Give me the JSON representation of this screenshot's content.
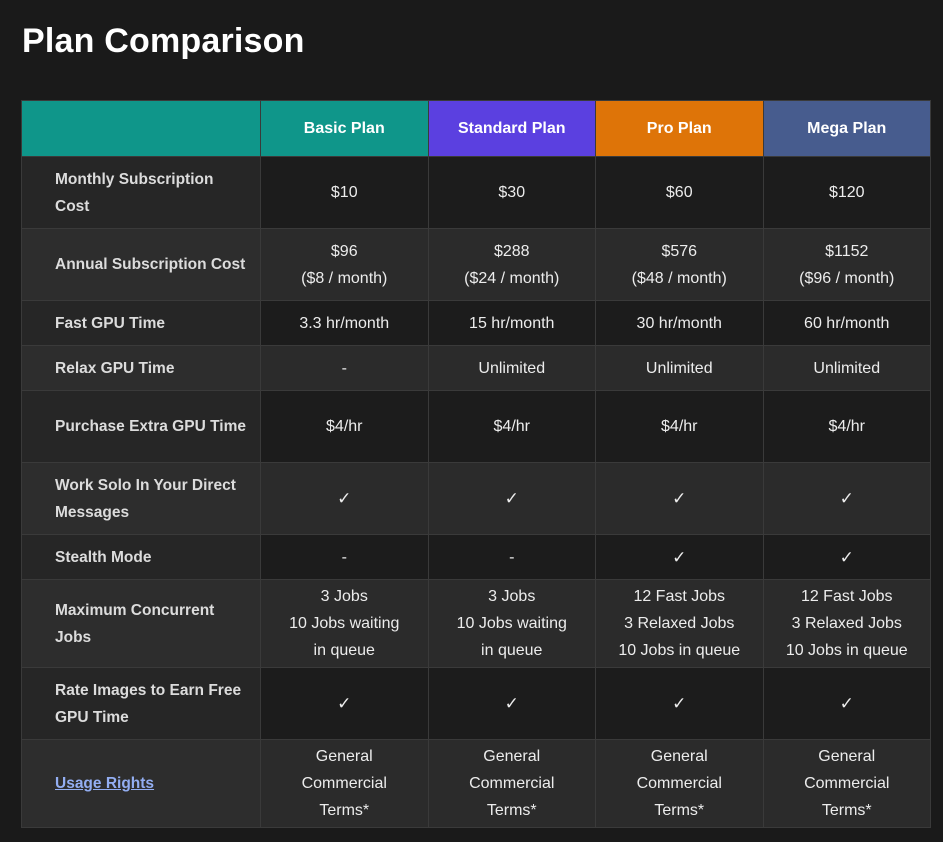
{
  "page": {
    "title": "Plan Comparison"
  },
  "plans": [
    "Basic Plan",
    "Standard Plan",
    "Pro Plan",
    "Mega Plan"
  ],
  "colors": {
    "background": "#1a1a1a",
    "basic_header": "#0f968a",
    "standard_header": "#5b40e0",
    "pro_header": "#de7408",
    "mega_header": "#475c8e",
    "link": "#93aef2"
  },
  "rows": [
    {
      "feature": "Monthly Subscription Cost",
      "values": [
        "$10",
        "$30",
        "$60",
        "$120"
      ]
    },
    {
      "feature": "Annual Subscription Cost",
      "values": [
        [
          "$96",
          "($8 / month)"
        ],
        [
          "$288",
          "($24 / month)"
        ],
        [
          "$576",
          "($48 / month)"
        ],
        [
          "$1152",
          "($96 / month)"
        ]
      ]
    },
    {
      "feature": "Fast GPU Time",
      "values": [
        "3.3 hr/month",
        "15 hr/month",
        "30 hr/month",
        "60 hr/month"
      ]
    },
    {
      "feature": "Relax GPU Time",
      "values": [
        "-",
        "Unlimited",
        "Unlimited",
        "Unlimited"
      ]
    },
    {
      "feature": "Purchase Extra GPU Time",
      "values": [
        "$4/hr",
        "$4/hr",
        "$4/hr",
        "$4/hr"
      ]
    },
    {
      "feature": "Work Solo In Your Direct Messages",
      "values": [
        "✓",
        "✓",
        "✓",
        "✓"
      ]
    },
    {
      "feature": "Stealth Mode",
      "values": [
        "-",
        "-",
        "✓",
        "✓"
      ]
    },
    {
      "feature": "Maximum Concurrent Jobs",
      "values": [
        [
          "3 Jobs",
          "10 Jobs waiting",
          "in queue"
        ],
        [
          "3 Jobs",
          "10 Jobs waiting",
          "in queue"
        ],
        [
          "12 Fast Jobs",
          "3 Relaxed Jobs",
          "10 Jobs in queue"
        ],
        [
          "12 Fast Jobs",
          "3 Relaxed Jobs",
          "10 Jobs in queue"
        ]
      ]
    },
    {
      "feature": "Rate Images to Earn Free GPU Time",
      "values": [
        "✓",
        "✓",
        "✓",
        "✓"
      ]
    },
    {
      "feature": "Usage Rights",
      "feature_is_link": true,
      "values": [
        [
          "General",
          "Commercial",
          "Terms*"
        ],
        [
          "General",
          "Commercial",
          "Terms*"
        ],
        [
          "General",
          "Commercial",
          "Terms*"
        ],
        [
          "General",
          "Commercial",
          "Terms*"
        ]
      ]
    }
  ]
}
